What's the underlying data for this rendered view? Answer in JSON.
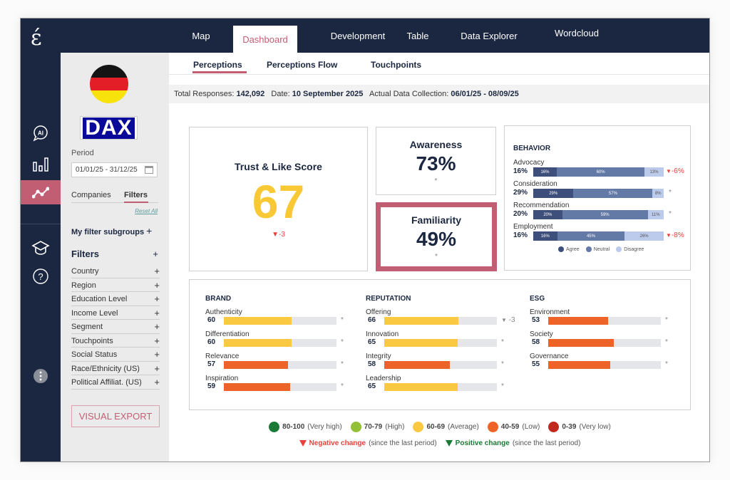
{
  "app": {
    "logo": "έ"
  },
  "top_nav": [
    {
      "label": "Map"
    },
    {
      "label": "Dashboard",
      "active": true
    },
    {
      "label": "Development"
    },
    {
      "label": "Table"
    },
    {
      "label": "Data Explorer"
    },
    {
      "label": "Wordcloud"
    }
  ],
  "rail": [
    {
      "icon": "ai-chat-icon"
    },
    {
      "icon": "bar-chart-icon"
    },
    {
      "icon": "trend-line-icon",
      "active": true
    },
    {
      "icon": "graduation-cap-icon"
    },
    {
      "icon": "help-icon"
    },
    {
      "icon": "more-options-icon"
    }
  ],
  "sidebar": {
    "country_flag": "germany-flag",
    "index_logo": "DAX",
    "period_label": "Period",
    "period_value": "01/01/25 - 31/12/25",
    "tabs": [
      {
        "label": "Companies"
      },
      {
        "label": "Filters",
        "active": true
      }
    ],
    "reset_all": "Reset All",
    "subgroups_label": "My filter subgroups",
    "filters_heading": "Filters",
    "plus": "+",
    "filters": [
      {
        "label": "Country"
      },
      {
        "label": "Region"
      },
      {
        "label": "Education Level"
      },
      {
        "label": "Income Level"
      },
      {
        "label": "Segment"
      },
      {
        "label": "Touchpoints"
      },
      {
        "label": "Social Status"
      },
      {
        "label": "Race/Ethnicity (US)"
      },
      {
        "label": "Political Affiliat. (US)"
      }
    ],
    "export_label": "VISUAL EXPORT"
  },
  "subtabs": [
    {
      "label": "Perceptions",
      "active": true
    },
    {
      "label": "Perceptions Flow"
    },
    {
      "label": "Touchpoints"
    }
  ],
  "info": {
    "responses_label": "Total Responses:",
    "responses_value": "142,092",
    "date_label": "Date:",
    "date_value": "10 September 2025",
    "collection_label": "Actual Data Collection:",
    "collection_value": "06/01/25 - 08/09/25"
  },
  "trust": {
    "title": "Trust & Like Score",
    "value": "67",
    "change": "-3",
    "color": "#f9c935"
  },
  "awareness": {
    "title": "Awareness",
    "value": "73%",
    "note": "*"
  },
  "familiarity": {
    "title": "Familiarity",
    "value": "49%",
    "note": "*"
  },
  "behavior": {
    "title": "BEHAVIOR",
    "rows": [
      {
        "label": "Advocacy",
        "value": "16%",
        "agree": 16,
        "neutral": 60,
        "disagree": 13,
        "change": "-6%",
        "negative": true
      },
      {
        "label": "Consideration",
        "value": "29%",
        "agree": 29,
        "neutral": 57,
        "disagree": 8,
        "change": "*",
        "negative": false
      },
      {
        "label": "Recommendation",
        "value": "20%",
        "agree": 20,
        "neutral": 59,
        "disagree": 11,
        "change": "*",
        "negative": false
      },
      {
        "label": "Employment",
        "value": "16%",
        "agree": 16,
        "neutral": 45,
        "disagree": 26,
        "change": "-8%",
        "negative": true
      }
    ],
    "legend": [
      {
        "label": "Agree",
        "color": "#3d4f7a"
      },
      {
        "label": "Neutral",
        "color": "#6379a6"
      },
      {
        "label": "Disagree",
        "color": "#bccbeb"
      }
    ]
  },
  "sections": [
    {
      "title": "BRAND",
      "items": [
        {
          "label": "Authenticity",
          "value": 60,
          "change": "*"
        },
        {
          "label": "Differentiation",
          "value": 60,
          "change": "*"
        },
        {
          "label": "Relevance",
          "value": 57,
          "change": "*"
        },
        {
          "label": "Inspiration",
          "value": 59,
          "change": "*"
        }
      ]
    },
    {
      "title": "REPUTATION",
      "items": [
        {
          "label": "Offering",
          "value": 66,
          "change": "-3",
          "negative": true
        },
        {
          "label": "Innovation",
          "value": 65,
          "change": "*"
        },
        {
          "label": "Integrity",
          "value": 58,
          "change": "*"
        },
        {
          "label": "Leadership",
          "value": 65,
          "change": "*"
        }
      ]
    },
    {
      "title": "ESG",
      "items": [
        {
          "label": "Environment",
          "value": 53,
          "change": "*"
        },
        {
          "label": "Society",
          "value": 58,
          "change": "*"
        },
        {
          "label": "Governance",
          "value": 55,
          "change": "*"
        }
      ]
    }
  ],
  "score_legend": [
    {
      "range": "80-100",
      "label": "(Very high)",
      "color": "#1a7a35"
    },
    {
      "range": "70-79",
      "label": "(High)",
      "color": "#93c034"
    },
    {
      "range": "60-69",
      "label": "(Average)",
      "color": "#fac941"
    },
    {
      "range": "40-59",
      "label": "(Low)",
      "color": "#ee6327"
    },
    {
      "range": "0-39",
      "label": "(Very low)",
      "color": "#c1281d"
    }
  ],
  "change_legend": [
    {
      "label": "Negative change",
      "suffix": "(since the last period)",
      "color": "#e8413b"
    },
    {
      "label": "Positive change",
      "suffix": "(since the last period)",
      "color": "#1a7a35"
    }
  ],
  "colors": {
    "accent": "#c25e74",
    "navy": "#1b2740"
  }
}
